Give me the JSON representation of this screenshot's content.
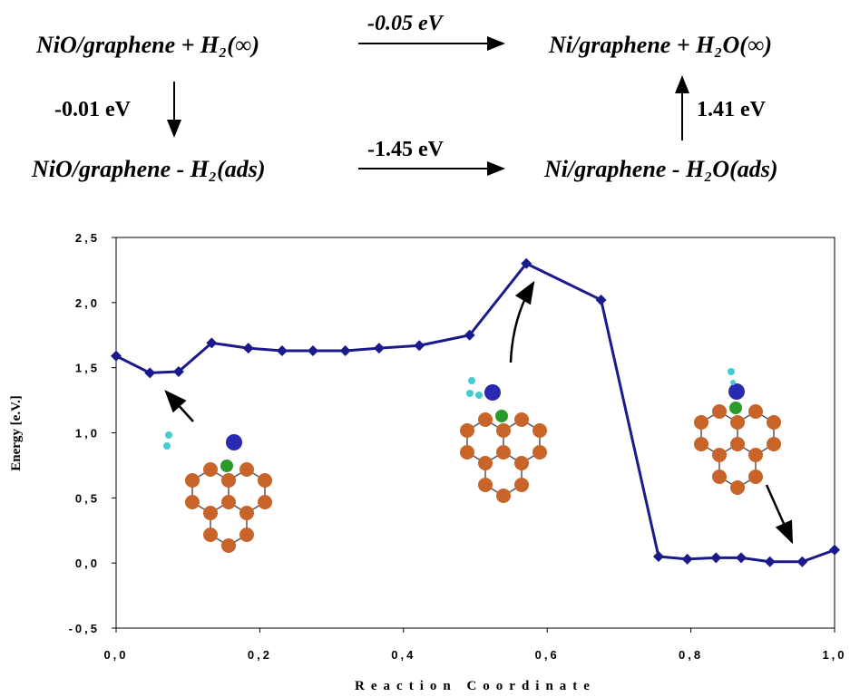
{
  "scheme": {
    "top_left": "NiO/graphene + H₂(∞)",
    "top_right": "Ni/graphene + H₂O(∞)",
    "bottom_left": "NiO/graphene - H₂(ads)",
    "bottom_right": "Ni/graphene - H₂O(ads)",
    "top_energy": "-0.05 eV",
    "left_energy": "-0.01 eV",
    "bottom_energy": "-1.45 eV",
    "right_energy": "1.41 eV"
  },
  "chart_data": {
    "type": "line",
    "xlabel": "Reaction Coordinate",
    "ylabel": "Energy [e.V.]",
    "x": [
      0,
      0.047,
      0.087,
      0.133,
      0.184,
      0.231,
      0.274,
      0.319,
      0.366,
      0.422,
      0.492,
      0.571,
      0.675,
      0.755,
      0.795,
      0.835,
      0.87,
      0.91,
      0.955,
      1.0
    ],
    "series": [
      {
        "name": "Energy",
        "color": "#1a1a8c",
        "values": [
          1.59,
          1.46,
          1.47,
          1.69,
          1.65,
          1.63,
          1.63,
          1.63,
          1.65,
          1.67,
          1.75,
          2.3,
          2.02,
          0.05,
          0.03,
          0.04,
          0.04,
          0.01,
          0.01,
          0.1
        ]
      }
    ],
    "xlim": [
      0,
      1
    ],
    "ylim": [
      -0.5,
      2.5
    ],
    "xticks": [
      {
        "value": 0,
        "label": "0,0"
      },
      {
        "value": 0.2,
        "label": "0,2"
      },
      {
        "value": 0.4,
        "label": "0,4"
      },
      {
        "value": 0.6,
        "label": "0,6"
      },
      {
        "value": 0.8,
        "label": "0,8"
      },
      {
        "value": 1,
        "label": "1,0"
      }
    ],
    "yticks": [
      {
        "value": -0.5,
        "label": "-0,5"
      },
      {
        "value": 0,
        "label": "0,0"
      },
      {
        "value": 0.5,
        "label": "0,5"
      },
      {
        "value": 1,
        "label": "1,0"
      },
      {
        "value": 1.5,
        "label": "1,5"
      },
      {
        "value": 2,
        "label": "2,0"
      },
      {
        "value": 2.5,
        "label": "2,5"
      }
    ]
  }
}
